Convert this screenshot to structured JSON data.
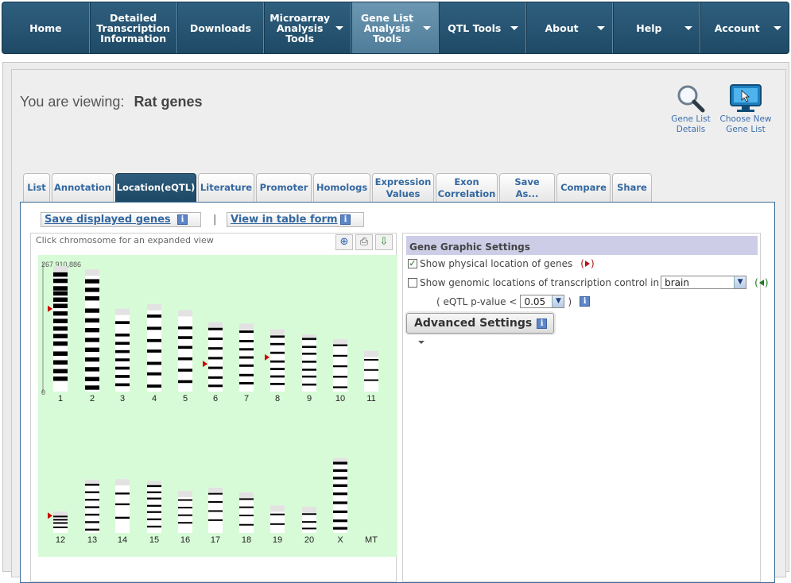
{
  "nav": {
    "items": [
      {
        "label": "Home",
        "has_menu": false
      },
      {
        "label": "Detailed\nTranscription\nInformation",
        "has_menu": false
      },
      {
        "label": "Downloads",
        "has_menu": false
      },
      {
        "label": "Microarray\nAnalysis\nTools",
        "has_menu": true
      },
      {
        "label": "Gene List\nAnalysis\nTools",
        "has_menu": true,
        "active": true
      },
      {
        "label": "QTL Tools",
        "has_menu": true
      },
      {
        "label": "About",
        "has_menu": true
      },
      {
        "label": "Help",
        "has_menu": true
      },
      {
        "label": "Account",
        "has_menu": true
      }
    ]
  },
  "viewing": {
    "prefix": "You are viewing:",
    "gene_list": "Rat genes"
  },
  "actions": {
    "gene_list_details": {
      "line1": "Gene List",
      "line2": "Details"
    },
    "choose_new": {
      "line1": "Choose New",
      "line2": "Gene List"
    }
  },
  "tabs": [
    {
      "label": "List"
    },
    {
      "label": "Annotation"
    },
    {
      "label": "Location(eQTL)",
      "active": true
    },
    {
      "label": "Literature"
    },
    {
      "label": "Promoter"
    },
    {
      "label": "Homologs"
    },
    {
      "label": "Expression\nValues"
    },
    {
      "label": "Exon\nCorrelation"
    },
    {
      "label": "Save As..."
    },
    {
      "label": "Compare"
    },
    {
      "label": "Share"
    }
  ],
  "location": {
    "save_displayed": "Save displayed genes",
    "separator": "|",
    "view_table": "View in table form",
    "info_glyph": "i"
  },
  "chromosome_panel": {
    "hint": "Click chromosome for an expanded view",
    "tools": {
      "zoom": "zoom-in-icon",
      "print": "printer-icon",
      "download": "download-icon"
    },
    "scale_max": "267,910,886",
    "scale_min": "0",
    "background_color": "#d7fbd7",
    "marker_color": "#cc0000",
    "chromosomes": [
      {
        "name": "1",
        "length": 268,
        "markers": [
          0.34
        ],
        "bands": [
          0.05,
          0.1,
          0.16,
          0.2,
          0.25,
          0.3,
          0.36,
          0.42,
          0.48,
          0.54,
          0.6,
          0.68,
          0.75,
          0.82,
          0.88
        ]
      },
      {
        "name": "2",
        "length": 261,
        "markers": [],
        "bands": [
          0.08,
          0.15,
          0.22,
          0.32,
          0.4,
          0.48,
          0.56,
          0.64,
          0.72,
          0.8,
          0.88,
          0.95
        ]
      },
      {
        "name": "3",
        "length": 177,
        "markers": [],
        "bands": [
          0.15,
          0.3,
          0.4,
          0.5,
          0.6,
          0.7,
          0.8,
          0.9
        ]
      },
      {
        "name": "4",
        "length": 187,
        "markers": [],
        "bands": [
          0.12,
          0.26,
          0.4,
          0.52,
          0.66,
          0.78,
          0.92
        ]
      },
      {
        "name": "5",
        "length": 174,
        "markers": [],
        "bands": [
          0.2,
          0.32,
          0.44,
          0.58,
          0.72,
          0.86
        ]
      },
      {
        "name": "6",
        "length": 148,
        "markers": [
          0.6
        ],
        "bands": [
          0.08,
          0.22,
          0.36,
          0.5,
          0.64,
          0.78,
          0.9
        ]
      },
      {
        "name": "7",
        "length": 145,
        "markers": [],
        "bands": [
          0.1,
          0.24,
          0.36,
          0.48,
          0.6,
          0.74,
          0.86
        ]
      },
      {
        "name": "8",
        "length": 133,
        "markers": [
          0.45
        ],
        "bands": [
          0.1,
          0.22,
          0.36,
          0.5,
          0.62,
          0.74,
          0.86
        ]
      },
      {
        "name": "9",
        "length": 122,
        "markers": [],
        "bands": [
          0.06,
          0.2,
          0.32,
          0.46,
          0.6,
          0.72,
          0.86
        ]
      },
      {
        "name": "10",
        "length": 112,
        "markers": [],
        "bands": [
          0.1,
          0.3,
          0.5,
          0.7,
          0.9
        ]
      },
      {
        "name": "11",
        "length": 87,
        "markers": [],
        "bands": [
          0.2,
          0.45,
          0.7
        ]
      },
      {
        "name": "12",
        "length": 46,
        "markers": [
          0.2
        ],
        "bands": [
          0.2,
          0.35,
          0.5,
          0.7
        ]
      },
      {
        "name": "13",
        "length": 114,
        "markers": [],
        "bands": [
          0.08,
          0.22,
          0.36,
          0.5,
          0.64,
          0.78,
          0.92
        ]
      },
      {
        "name": "14",
        "length": 115,
        "markers": [],
        "bands": [
          0.25,
          0.45,
          0.7
        ]
      },
      {
        "name": "15",
        "length": 111,
        "markers": [],
        "bands": [
          0.08,
          0.2,
          0.32,
          0.46,
          0.58,
          0.72,
          0.86
        ]
      },
      {
        "name": "16",
        "length": 90,
        "markers": [],
        "bands": [
          0.2,
          0.38,
          0.56,
          0.74
        ]
      },
      {
        "name": "17",
        "length": 97,
        "markers": [],
        "bands": [
          0.12,
          0.3,
          0.5,
          0.7
        ]
      },
      {
        "name": "18",
        "length": 87,
        "markers": [],
        "bands": [
          0.15,
          0.35,
          0.55,
          0.78
        ]
      },
      {
        "name": "19",
        "length": 59,
        "markers": [],
        "bands": [
          0.3,
          0.65
        ]
      },
      {
        "name": "20",
        "length": 56,
        "markers": [],
        "bands": [
          0.25,
          0.55,
          0.8
        ]
      },
      {
        "name": "X",
        "length": 160,
        "markers": [],
        "bands": [
          0.05,
          0.15,
          0.25,
          0.35,
          0.46,
          0.58,
          0.7,
          0.82,
          0.92
        ]
      },
      {
        "name": "MT",
        "length": 0,
        "markers": [],
        "bands": []
      }
    ]
  },
  "settings": {
    "header": "Gene Graphic Settings",
    "show_physical": {
      "label": "Show physical location of genes",
      "checked": true,
      "marker": "(",
      "marker_end": ")"
    },
    "show_genomic": {
      "label": "Show genomic locations of transcription control in",
      "checked": false,
      "tissue": "brain"
    },
    "pvalue": {
      "prefix": "( eQTL p-value <",
      "value": "0.05",
      "suffix": ")"
    },
    "advanced": "Advanced Settings",
    "marker_red": "#b01515",
    "marker_green": "#1b7a1b"
  }
}
